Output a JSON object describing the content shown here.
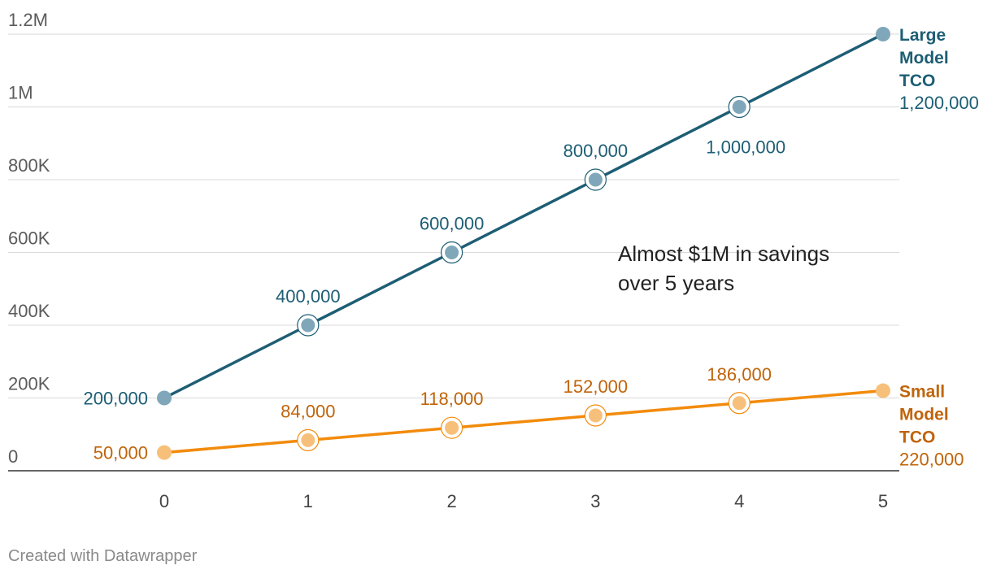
{
  "chart_data": {
    "type": "line",
    "x": [
      0,
      1,
      2,
      3,
      4,
      5
    ],
    "xlim": [
      0,
      5
    ],
    "ylim": [
      0,
      1200000
    ],
    "y_ticks": [
      {
        "value": 0,
        "label": "0"
      },
      {
        "value": 200000,
        "label": "200K"
      },
      {
        "value": 400000,
        "label": "400K"
      },
      {
        "value": 600000,
        "label": "600K"
      },
      {
        "value": 800000,
        "label": "800K"
      },
      {
        "value": 1000000,
        "label": "1M"
      },
      {
        "value": 1200000,
        "label": "1.2M"
      }
    ],
    "x_tick_labels": [
      "0",
      "1",
      "2",
      "3",
      "4",
      "5"
    ],
    "grid": true,
    "series": [
      {
        "name": "Large Model TCO",
        "name_lines": [
          "Large",
          "Model",
          "TCO"
        ],
        "color": "#1d5e74",
        "marker_color": "#7fa7b9",
        "values": [
          200000,
          400000,
          600000,
          800000,
          1000000,
          1200000
        ],
        "labels": [
          "200,000",
          "400,000",
          "600,000",
          "800,000",
          "1,000,000",
          "1,200,000"
        ]
      },
      {
        "name": "Small Model TCO",
        "name_lines": [
          "Small",
          "Model",
          "TCO"
        ],
        "color": "#f28b0c",
        "text_color": "#c0640a",
        "marker_color": "#f7c07a",
        "values": [
          50000,
          84000,
          118000,
          152000,
          186000,
          220000
        ],
        "labels": [
          "50,000",
          "84,000",
          "118,000",
          "152,000",
          "186,000",
          "220,000"
        ]
      }
    ],
    "annotation": [
      "Almost $1M in savings",
      "over 5 years"
    ]
  },
  "footer": {
    "credit": "Created with Datawrapper"
  }
}
